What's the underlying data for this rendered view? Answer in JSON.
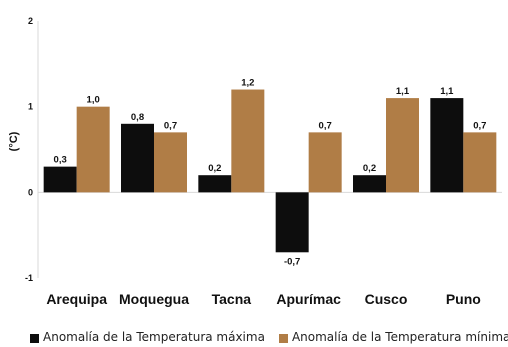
{
  "chart_data": {
    "type": "bar",
    "ylabel": "(°C)",
    "ylim": [
      -1,
      2
    ],
    "yticks": [
      -1,
      0,
      1,
      2
    ],
    "grid": false,
    "legend_position": "bottom",
    "categories": [
      "Arequipa",
      "Moquegua",
      "Tacna",
      "Apurímac",
      "Cusco",
      "Puno"
    ],
    "series": [
      {
        "name": "Anomalía de la Temperatura máxima",
        "color": "#0d0d0d",
        "values": [
          0.3,
          0.8,
          0.2,
          -0.7,
          0.2,
          1.1
        ],
        "labels": [
          "0,3",
          "0,8",
          "0,2",
          "-0,7",
          "0,2",
          "1,1"
        ]
      },
      {
        "name": "Anomalía de la Temperatura mínima",
        "color": "#b07d46",
        "values": [
          1.0,
          0.7,
          1.2,
          0.7,
          1.1,
          0.7
        ],
        "labels": [
          "1,0",
          "0,7",
          "1,2",
          "0,7",
          "1,1",
          "0,7"
        ]
      }
    ]
  }
}
